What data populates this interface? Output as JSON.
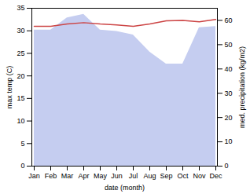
{
  "chart_data": {
    "type": "line",
    "categories": [
      "Jan",
      "Feb",
      "Mar",
      "Apr",
      "May",
      "Jun",
      "Jul",
      "Aug",
      "Sep",
      "Oct",
      "Nov",
      "Dec"
    ],
    "series": [
      {
        "type": "area",
        "axis": "y2",
        "color": "#c5cdf0",
        "values": [
          56.0,
          56.0,
          61.0,
          62.5,
          56.0,
          55.5,
          54.0,
          47.0,
          42.0,
          42.0,
          57.0,
          57.5
        ]
      },
      {
        "type": "line",
        "color": "#cc4444",
        "values": [
          31.0,
          31.0,
          31.5,
          31.8,
          31.5,
          31.3,
          31.0,
          31.5,
          32.2,
          32.3,
          32.0,
          32.5
        ]
      }
    ],
    "xlabel": "date (month)",
    "ylabel": "max temp (C)",
    "y2label": "med. precipitation (kg/m2)",
    "ylim": [
      0,
      35
    ],
    "yticks": [
      0,
      5,
      10,
      15,
      20,
      25,
      30,
      35
    ],
    "y2lim": [
      0,
      65
    ],
    "y2ticks": [
      0,
      10,
      20,
      30,
      40,
      50,
      60
    ],
    "grid": false
  }
}
